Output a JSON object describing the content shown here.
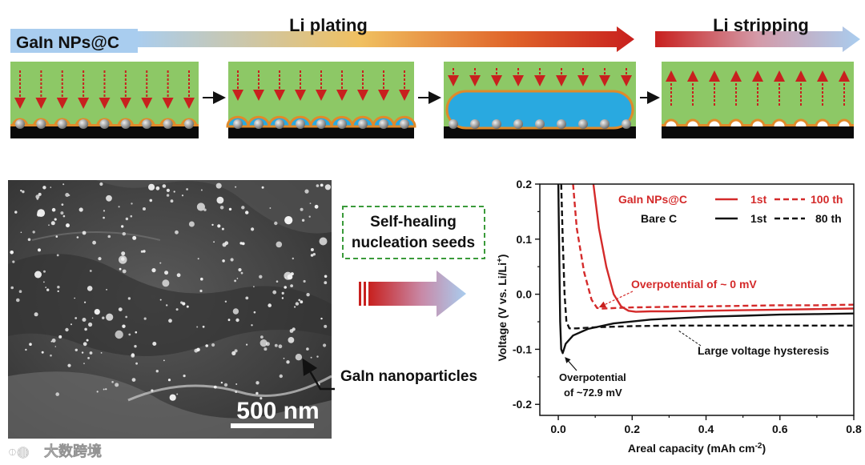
{
  "header": {
    "material_label": "GaIn NPs@C",
    "plating_label": "Li plating",
    "stripping_label": "Li stripping"
  },
  "middle": {
    "seeds_label": "Self-healing nucleation seeds",
    "seeds_line1": "Self-healing",
    "seeds_line2": "nucleation seeds",
    "particles_label": "GaIn nanoparticles",
    "scale_bar": "500 nm"
  },
  "watermark": {
    "text": "大数跨境"
  },
  "colors": {
    "electrolyte": "#8dc866",
    "lithium": "#29a9e0",
    "shell": "#e08a2a",
    "substrate": "#0a0a0a",
    "arrow_red": "#c8201e",
    "arrow_blue": "#a9cdef",
    "seed_box": "#3a9a3a"
  },
  "chart_data": {
    "type": "line",
    "title": "",
    "xlabel": "Areal capacity (mAh cm",
    "xlabel_sup": "-2",
    "xlabel_end": ")",
    "ylabel": "Voltage (V vs. Li/Li",
    "ylabel_sup": "+",
    "ylabel_end": ")",
    "xlim": [
      -0.05,
      0.8
    ],
    "ylim": [
      -0.22,
      0.2
    ],
    "xticks": [
      "0.0",
      "0.2",
      "0.4",
      "0.6",
      "0.8"
    ],
    "yticks": [
      "0.2",
      "0.1",
      "0.0",
      "-0.1",
      "-0.2"
    ],
    "legend": {
      "group1": "GaIn NPs@C",
      "group2": "Bare C",
      "g1_solid": "1st",
      "g1_dashed": "100 th",
      "g2_solid": "1st",
      "g2_dashed": "80 th"
    },
    "annotations": {
      "overpotential_gain": "Overpotential of ~ 0 mV",
      "hysteresis": "Large voltage hysteresis",
      "overpotential_bare_1": "Overpotential",
      "overpotential_bare_2": "of ~72.9 mV"
    },
    "series": [
      {
        "name": "GaIn NPs@C 1st",
        "color": "#d42a2a",
        "dash": false,
        "x": [
          0.095,
          0.11,
          0.13,
          0.15,
          0.17,
          0.19,
          0.21,
          0.25,
          0.3,
          0.4,
          0.5,
          0.6,
          0.7,
          0.8
        ],
        "y": [
          0.2,
          0.12,
          0.05,
          0.0,
          -0.022,
          -0.03,
          -0.032,
          -0.031,
          -0.031,
          -0.03,
          -0.029,
          -0.028,
          -0.027,
          -0.026
        ]
      },
      {
        "name": "GaIn NPs@C 100 th",
        "color": "#d42a2a",
        "dash": true,
        "x": [
          0.04,
          0.05,
          0.07,
          0.09,
          0.105,
          0.12,
          0.2,
          0.3,
          0.4,
          0.5,
          0.6,
          0.7,
          0.8
        ],
        "y": [
          0.2,
          0.12,
          0.04,
          -0.01,
          -0.025,
          -0.026,
          -0.024,
          -0.023,
          -0.022,
          -0.021,
          -0.02,
          -0.02,
          -0.019
        ]
      },
      {
        "name": "Bare C 1st",
        "color": "#111111",
        "dash": false,
        "x": [
          0.0,
          0.002,
          0.005,
          0.008,
          0.012,
          0.02,
          0.04,
          0.08,
          0.15,
          0.25,
          0.4,
          0.5,
          0.6,
          0.7,
          0.8
        ],
        "y": [
          0.2,
          0.1,
          -0.05,
          -0.1,
          -0.107,
          -0.09,
          -0.075,
          -0.063,
          -0.053,
          -0.046,
          -0.041,
          -0.039,
          -0.037,
          -0.036,
          -0.035
        ]
      },
      {
        "name": "Bare C 80 th",
        "color": "#111111",
        "dash": true,
        "x": [
          0.008,
          0.012,
          0.017,
          0.022,
          0.03,
          0.05,
          0.1,
          0.2,
          0.3,
          0.4,
          0.5,
          0.6,
          0.7,
          0.8
        ],
        "y": [
          0.2,
          0.1,
          0.0,
          -0.05,
          -0.062,
          -0.062,
          -0.06,
          -0.058,
          -0.057,
          -0.057,
          -0.057,
          -0.057,
          -0.057,
          -0.057
        ]
      }
    ]
  }
}
